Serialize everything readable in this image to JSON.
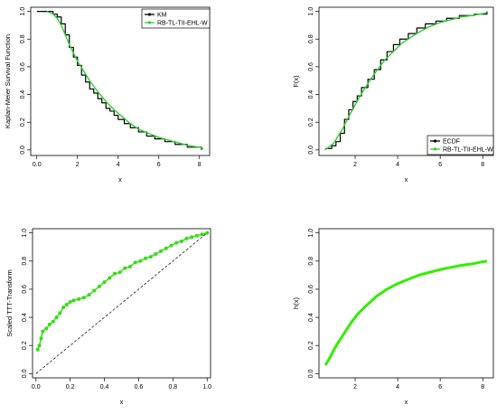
{
  "chart_data": [
    {
      "id": "km",
      "type": "line",
      "xlabel": "x",
      "ylabel": "Kaplan-Meier Survival Function",
      "xlim": [
        -0.3,
        8.5
      ],
      "ylim": [
        -0.04,
        1.03
      ],
      "xticks": [
        0,
        2,
        4,
        6,
        8
      ],
      "yticks": [
        0.0,
        0.2,
        0.4,
        0.6,
        0.8,
        1.0
      ],
      "legend": {
        "position": "top-right",
        "entries": [
          "KM",
          "RB-TL-TII-EHL-W"
        ]
      },
      "series": [
        {
          "name": "KM",
          "color": "#000000",
          "style": "step",
          "x": [
            0.0,
            0.6,
            0.8,
            1.0,
            1.2,
            1.4,
            1.6,
            1.8,
            2.0,
            2.2,
            2.4,
            2.6,
            2.8,
            3.0,
            3.2,
            3.4,
            3.6,
            3.8,
            4.0,
            4.3,
            4.6,
            5.0,
            5.4,
            5.8,
            6.3,
            6.8,
            7.4,
            8.1
          ],
          "y": [
            1.0,
            1.0,
            0.98,
            0.96,
            0.91,
            0.83,
            0.74,
            0.67,
            0.61,
            0.54,
            0.49,
            0.44,
            0.41,
            0.37,
            0.34,
            0.3,
            0.28,
            0.25,
            0.22,
            0.19,
            0.16,
            0.13,
            0.1,
            0.08,
            0.06,
            0.04,
            0.02,
            0.0
          ]
        },
        {
          "name": "RB-TL-TII-EHL-W",
          "color": "#33cc33",
          "style": "line",
          "x": [
            0.5,
            0.8,
            1.0,
            1.2,
            1.4,
            1.6,
            1.8,
            2.0,
            2.3,
            2.6,
            3.0,
            3.4,
            3.8,
            4.2,
            4.6,
            5.0,
            5.5,
            6.0,
            6.5,
            7.0,
            7.5,
            8.0,
            8.2
          ],
          "y": [
            1.0,
            0.98,
            0.95,
            0.9,
            0.83,
            0.76,
            0.7,
            0.64,
            0.57,
            0.5,
            0.42,
            0.35,
            0.29,
            0.24,
            0.19,
            0.15,
            0.12,
            0.09,
            0.07,
            0.05,
            0.03,
            0.02,
            0.01
          ]
        }
      ]
    },
    {
      "id": "cdf",
      "type": "line",
      "xlabel": "x",
      "ylabel": "F(x)",
      "xlim": [
        0.3,
        8.5
      ],
      "ylim": [
        -0.04,
        1.03
      ],
      "xticks": [
        2,
        4,
        6,
        8
      ],
      "yticks": [
        0.0,
        0.2,
        0.4,
        0.6,
        0.8,
        1.0
      ],
      "legend": {
        "position": "bottom-right",
        "entries": [
          "ECDF",
          "RB-TL-TII-EHL-W"
        ]
      },
      "series": [
        {
          "name": "ECDF",
          "color": "#000000",
          "style": "step",
          "x": [
            0.6,
            0.9,
            1.1,
            1.3,
            1.5,
            1.7,
            1.9,
            2.1,
            2.3,
            2.6,
            2.9,
            3.2,
            3.5,
            3.8,
            4.1,
            4.5,
            4.9,
            5.3,
            5.8,
            6.3,
            6.9,
            7.6,
            8.2
          ],
          "y": [
            0.01,
            0.03,
            0.06,
            0.12,
            0.22,
            0.29,
            0.35,
            0.39,
            0.45,
            0.51,
            0.58,
            0.65,
            0.71,
            0.76,
            0.8,
            0.84,
            0.88,
            0.91,
            0.93,
            0.95,
            0.97,
            0.98,
            1.0
          ]
        },
        {
          "name": "RB-TL-TII-EHL-W",
          "color": "#33cc33",
          "style": "line",
          "x": [
            0.6,
            1.0,
            1.4,
            1.8,
            2.2,
            2.6,
            3.0,
            3.4,
            3.8,
            4.2,
            4.6,
            5.0,
            5.5,
            6.0,
            6.5,
            7.0,
            7.5,
            8.2
          ],
          "y": [
            0.0,
            0.05,
            0.15,
            0.27,
            0.38,
            0.48,
            0.57,
            0.65,
            0.71,
            0.77,
            0.81,
            0.85,
            0.89,
            0.92,
            0.94,
            0.96,
            0.97,
            0.99
          ]
        }
      ]
    },
    {
      "id": "ttt",
      "type": "scatter",
      "xlabel": "x",
      "ylabel": "Scaled TTT-Transform",
      "xlim": [
        -0.02,
        1.02
      ],
      "ylim": [
        -0.03,
        1.03
      ],
      "xticks": [
        0.0,
        0.2,
        0.4,
        0.6,
        0.8,
        1.0
      ],
      "yticks": [
        0.0,
        0.2,
        0.4,
        0.6,
        0.8,
        1.0
      ],
      "reference_line": {
        "x": [
          0,
          1
        ],
        "y": [
          0,
          1
        ],
        "style": "dashed",
        "color": "#000000"
      },
      "series": [
        {
          "color": "#33dd11",
          "style": "line-points",
          "x": [
            0.01,
            0.02,
            0.03,
            0.04,
            0.06,
            0.08,
            0.1,
            0.12,
            0.14,
            0.16,
            0.18,
            0.2,
            0.22,
            0.25,
            0.28,
            0.31,
            0.34,
            0.37,
            0.4,
            0.43,
            0.46,
            0.49,
            0.52,
            0.55,
            0.58,
            0.61,
            0.64,
            0.67,
            0.7,
            0.73,
            0.76,
            0.79,
            0.82,
            0.85,
            0.88,
            0.91,
            0.94,
            0.97,
            1.0
          ],
          "y": [
            0.17,
            0.2,
            0.25,
            0.3,
            0.32,
            0.35,
            0.37,
            0.4,
            0.43,
            0.47,
            0.49,
            0.51,
            0.52,
            0.53,
            0.54,
            0.56,
            0.59,
            0.62,
            0.65,
            0.68,
            0.71,
            0.72,
            0.75,
            0.76,
            0.79,
            0.8,
            0.82,
            0.83,
            0.85,
            0.87,
            0.89,
            0.91,
            0.93,
            0.94,
            0.96,
            0.97,
            0.98,
            0.99,
            1.0
          ]
        }
      ]
    },
    {
      "id": "hx",
      "type": "line",
      "xlabel": "x",
      "ylabel": "h(x)",
      "xlim": [
        0.3,
        8.5
      ],
      "ylim": [
        -0.03,
        1.03
      ],
      "xticks": [
        2,
        4,
        6,
        8
      ],
      "yticks": [
        0.0,
        0.2,
        0.4,
        0.6,
        0.8,
        1.0
      ],
      "series": [
        {
          "color": "#33ee00",
          "style": "line",
          "x": [
            0.6,
            0.8,
            1.0,
            1.2,
            1.5,
            1.8,
            2.1,
            2.5,
            3.0,
            3.5,
            4.0,
            4.5,
            5.0,
            5.5,
            6.0,
            6.5,
            7.0,
            7.5,
            8.0,
            8.2
          ],
          "y": [
            0.06,
            0.11,
            0.17,
            0.22,
            0.29,
            0.36,
            0.42,
            0.48,
            0.55,
            0.6,
            0.64,
            0.67,
            0.7,
            0.72,
            0.74,
            0.755,
            0.77,
            0.78,
            0.795,
            0.8
          ]
        }
      ]
    }
  ]
}
